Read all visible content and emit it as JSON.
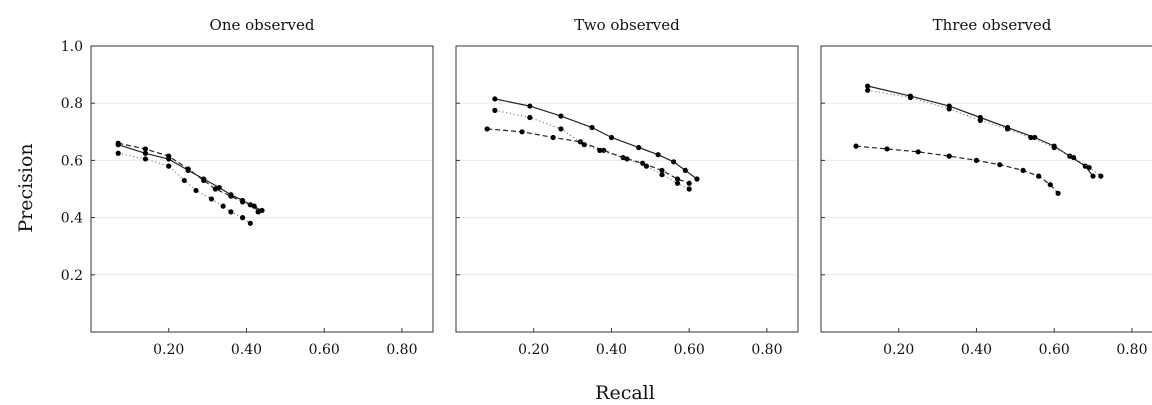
{
  "figure": {
    "ylabel": "Precision",
    "xlabel": "Recall"
  },
  "chart_data": [
    {
      "type": "line",
      "title": "One observed",
      "xlim": [
        0.0,
        0.88
      ],
      "ylim": [
        0.0,
        1.0
      ],
      "xticks": [
        "0.20",
        "0.40",
        "0.60",
        "0.80"
      ],
      "yticks": [
        "0.2",
        "0.4",
        "0.6",
        "0.8",
        "1.0"
      ],
      "grid": "horizontal",
      "series": [
        {
          "style": "solid",
          "points": [
            [
              0.07,
              0.655
            ],
            [
              0.14,
              0.625
            ],
            [
              0.2,
              0.605
            ],
            [
              0.25,
              0.565
            ],
            [
              0.29,
              0.535
            ],
            [
              0.33,
              0.505
            ],
            [
              0.36,
              0.48
            ],
            [
              0.39,
              0.46
            ],
            [
              0.41,
              0.445
            ],
            [
              0.44,
              0.425
            ]
          ]
        },
        {
          "style": "dashed",
          "points": [
            [
              0.07,
              0.66
            ],
            [
              0.14,
              0.64
            ],
            [
              0.2,
              0.615
            ],
            [
              0.25,
              0.57
            ],
            [
              0.29,
              0.53
            ],
            [
              0.32,
              0.5
            ],
            [
              0.36,
              0.475
            ],
            [
              0.39,
              0.455
            ],
            [
              0.42,
              0.44
            ],
            [
              0.43,
              0.42
            ]
          ]
        },
        {
          "style": "dotted",
          "points": [
            [
              0.07,
              0.625
            ],
            [
              0.14,
              0.605
            ],
            [
              0.2,
              0.58
            ],
            [
              0.24,
              0.53
            ],
            [
              0.27,
              0.495
            ],
            [
              0.31,
              0.465
            ],
            [
              0.34,
              0.44
            ],
            [
              0.36,
              0.42
            ],
            [
              0.39,
              0.4
            ],
            [
              0.41,
              0.38
            ]
          ]
        }
      ]
    },
    {
      "type": "line",
      "title": "Two observed",
      "xlim": [
        0.0,
        0.88
      ],
      "ylim": [
        0.0,
        1.0
      ],
      "xticks": [
        "0.20",
        "0.40",
        "0.60",
        "0.80"
      ],
      "yticks": [
        "0.2",
        "0.4",
        "0.6",
        "0.8",
        "1.0"
      ],
      "grid": "horizontal",
      "series": [
        {
          "style": "solid",
          "points": [
            [
              0.1,
              0.815
            ],
            [
              0.19,
              0.79
            ],
            [
              0.27,
              0.755
            ],
            [
              0.35,
              0.715
            ],
            [
              0.4,
              0.68
            ],
            [
              0.47,
              0.645
            ],
            [
              0.52,
              0.62
            ],
            [
              0.56,
              0.595
            ],
            [
              0.59,
              0.565
            ],
            [
              0.62,
              0.535
            ]
          ]
        },
        {
          "style": "dashed",
          "points": [
            [
              0.08,
              0.71
            ],
            [
              0.17,
              0.7
            ],
            [
              0.25,
              0.68
            ],
            [
              0.32,
              0.665
            ],
            [
              0.38,
              0.635
            ],
            [
              0.43,
              0.61
            ],
            [
              0.48,
              0.59
            ],
            [
              0.53,
              0.565
            ],
            [
              0.57,
              0.535
            ],
            [
              0.6,
              0.52
            ]
          ]
        },
        {
          "style": "dotted",
          "points": [
            [
              0.1,
              0.775
            ],
            [
              0.19,
              0.75
            ],
            [
              0.27,
              0.71
            ],
            [
              0.33,
              0.655
            ],
            [
              0.37,
              0.635
            ],
            [
              0.44,
              0.605
            ],
            [
              0.49,
              0.58
            ],
            [
              0.53,
              0.55
            ],
            [
              0.57,
              0.52
            ],
            [
              0.6,
              0.5
            ]
          ]
        }
      ]
    },
    {
      "type": "line",
      "title": "Three observed",
      "xlim": [
        0.0,
        0.88
      ],
      "ylim": [
        0.0,
        1.0
      ],
      "xticks": [
        "0.20",
        "0.40",
        "0.60",
        "0.80"
      ],
      "yticks": [
        "0.2",
        "0.4",
        "0.6",
        "0.8",
        "1.0"
      ],
      "grid": "horizontal",
      "series": [
        {
          "style": "solid",
          "points": [
            [
              0.12,
              0.86
            ],
            [
              0.23,
              0.825
            ],
            [
              0.33,
              0.79
            ],
            [
              0.41,
              0.75
            ],
            [
              0.48,
              0.715
            ],
            [
              0.55,
              0.68
            ],
            [
              0.6,
              0.65
            ],
            [
              0.64,
              0.615
            ],
            [
              0.68,
              0.58
            ],
            [
              0.7,
              0.545
            ]
          ]
        },
        {
          "style": "dashed",
          "points": [
            [
              0.09,
              0.65
            ],
            [
              0.17,
              0.64
            ],
            [
              0.25,
              0.63
            ],
            [
              0.33,
              0.615
            ],
            [
              0.4,
              0.6
            ],
            [
              0.46,
              0.585
            ],
            [
              0.52,
              0.565
            ],
            [
              0.56,
              0.545
            ],
            [
              0.59,
              0.515
            ],
            [
              0.61,
              0.485
            ]
          ]
        },
        {
          "style": "dotted",
          "points": [
            [
              0.12,
              0.845
            ],
            [
              0.23,
              0.82
            ],
            [
              0.33,
              0.78
            ],
            [
              0.41,
              0.74
            ],
            [
              0.48,
              0.71
            ],
            [
              0.54,
              0.68
            ],
            [
              0.6,
              0.645
            ],
            [
              0.65,
              0.61
            ],
            [
              0.69,
              0.575
            ],
            [
              0.72,
              0.545
            ]
          ]
        }
      ]
    }
  ]
}
